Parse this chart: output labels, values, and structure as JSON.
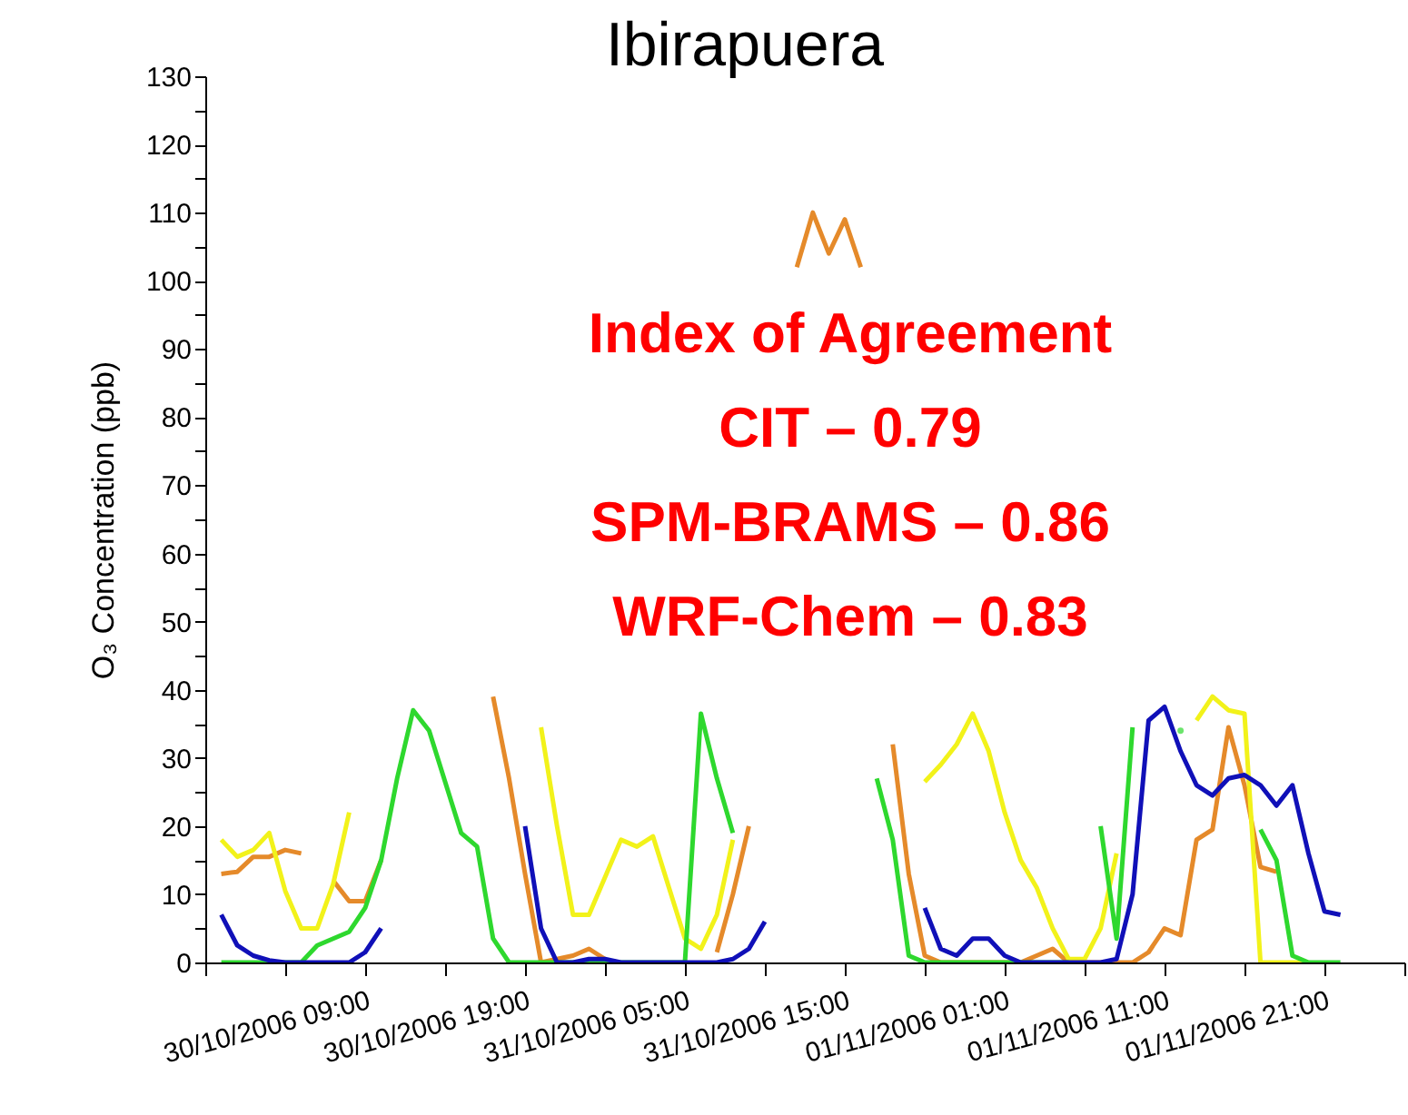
{
  "chart_data": {
    "type": "line",
    "title": "Ibirapuera",
    "ylabel": "O₃ Concentration (ppb)",
    "annotations": [
      "Index of Agreement",
      "CIT – 0.79",
      "SPM-BRAMS – 0.86",
      "WRF-Chem – 0.83"
    ],
    "x": [
      "2006-10-30T00:00",
      "2006-10-30T01:00",
      "2006-10-30T02:00",
      "2006-10-30T03:00",
      "2006-10-30T04:00",
      "2006-10-30T05:00",
      "2006-10-30T06:00",
      "2006-10-30T07:00",
      "2006-10-30T08:00",
      "2006-10-30T09:00",
      "2006-10-30T10:00",
      "2006-10-30T11:00",
      "2006-10-30T12:00",
      "2006-10-30T13:00",
      "2006-10-30T14:00",
      "2006-10-30T15:00",
      "2006-10-30T16:00",
      "2006-10-30T17:00",
      "2006-10-30T18:00",
      "2006-10-30T19:00",
      "2006-10-30T20:00",
      "2006-10-30T21:00",
      "2006-10-30T22:00",
      "2006-10-30T23:00",
      "2006-10-31T00:00",
      "2006-10-31T01:00",
      "2006-10-31T02:00",
      "2006-10-31T03:00",
      "2006-10-31T04:00",
      "2006-10-31T05:00",
      "2006-10-31T06:00",
      "2006-10-31T07:00",
      "2006-10-31T08:00",
      "2006-10-31T09:00",
      "2006-10-31T10:00",
      "2006-10-31T11:00",
      "2006-10-31T12:00",
      "2006-10-31T13:00",
      "2006-10-31T14:00",
      "2006-10-31T15:00",
      "2006-10-31T16:00",
      "2006-10-31T17:00",
      "2006-10-31T18:00",
      "2006-10-31T19:00",
      "2006-10-31T20:00",
      "2006-10-31T21:00",
      "2006-10-31T22:00",
      "2006-10-31T23:00",
      "2006-11-01T00:00",
      "2006-11-01T01:00",
      "2006-11-01T02:00",
      "2006-11-01T03:00",
      "2006-11-01T04:00",
      "2006-11-01T05:00",
      "2006-11-01T06:00",
      "2006-11-01T07:00",
      "2006-11-01T08:00",
      "2006-11-01T09:00",
      "2006-11-01T10:00",
      "2006-11-01T11:00",
      "2006-11-01T12:00",
      "2006-11-01T13:00",
      "2006-11-01T14:00",
      "2006-11-01T15:00",
      "2006-11-01T16:00",
      "2006-11-01T17:00",
      "2006-11-01T18:00",
      "2006-11-01T19:00",
      "2006-11-01T20:00",
      "2006-11-01T21:00",
      "2006-11-01T22:00"
    ],
    "series": [
      {
        "color": "#e58a2a",
        "values": [
          13,
          13.3,
          15.5,
          15.5,
          16.5,
          16,
          null,
          12,
          9,
          9,
          15,
          null,
          null,
          null,
          null,
          null,
          null,
          39,
          27,
          13,
          0,
          0.5,
          1,
          2,
          0.5,
          null,
          null,
          null,
          null,
          null,
          null,
          1.5,
          10,
          20,
          null,
          null,
          102,
          110,
          104,
          109,
          102,
          null,
          32,
          13,
          1,
          0,
          0,
          0,
          0,
          0,
          0,
          1,
          2,
          0,
          0,
          0,
          0,
          0,
          1.5,
          5,
          4,
          18,
          19.5,
          34.5,
          26,
          14,
          13.3,
          null,
          null,
          null,
          null
        ]
      },
      {
        "color": "#f2f21a",
        "values": [
          18,
          15.5,
          16.5,
          19,
          10.5,
          5,
          5,
          11.5,
          22,
          null,
          null,
          null,
          null,
          null,
          null,
          null,
          null,
          null,
          null,
          null,
          34.5,
          20,
          7,
          7,
          12.5,
          18,
          17,
          18.5,
          11,
          3.5,
          2,
          7,
          18,
          null,
          null,
          null,
          null,
          null,
          null,
          null,
          null,
          null,
          null,
          null,
          26.5,
          29,
          32,
          36.5,
          31,
          22,
          15,
          11,
          5,
          0.5,
          0.5,
          5,
          16,
          null,
          null,
          null,
          null,
          35.5,
          39,
          37,
          36.5,
          0,
          0,
          0,
          0,
          null,
          null
        ]
      },
      {
        "color": "#2ed82e",
        "values": [
          0,
          0,
          0,
          0,
          0,
          0,
          2.5,
          3.5,
          4.5,
          8,
          15,
          27,
          37,
          34,
          26.5,
          19,
          17,
          3.5,
          0,
          0,
          0,
          0,
          0,
          0,
          0,
          0,
          0,
          0,
          0,
          0,
          36.5,
          27,
          19,
          null,
          null,
          null,
          null,
          null,
          null,
          null,
          null,
          27,
          18,
          1,
          0,
          0,
          0,
          0,
          0,
          0,
          0,
          0,
          0,
          0,
          null,
          20,
          3.5,
          34.5,
          null,
          null,
          34,
          null,
          null,
          null,
          null,
          19.5,
          15,
          1,
          0,
          0,
          0
        ]
      },
      {
        "color": "#1010b8",
        "values": [
          7,
          2.5,
          1,
          0.3,
          0,
          0,
          0,
          0,
          0,
          1.5,
          5,
          null,
          null,
          null,
          null,
          null,
          null,
          null,
          null,
          20,
          5,
          0,
          0,
          0.5,
          0.5,
          0,
          0,
          0,
          0,
          0,
          0,
          0,
          0.5,
          2,
          6,
          null,
          null,
          null,
          null,
          null,
          null,
          null,
          null,
          null,
          8,
          2,
          1,
          3.5,
          3.5,
          1,
          0,
          0,
          0,
          0,
          0,
          0,
          0.5,
          10,
          35.5,
          37.5,
          31,
          26,
          24.5,
          27,
          27.5,
          26,
          23,
          26,
          16,
          7.5,
          7
        ]
      }
    ],
    "xlim": [
      "2006-10-29T23:00",
      "2006-11-02T02:00"
    ],
    "xticks": [
      {
        "value": "2006-10-29T23:00",
        "label": null
      },
      {
        "value": "2006-10-30T04:00",
        "label": null
      },
      {
        "value": "2006-10-30T09:00",
        "label": "30/10/2006 09:00"
      },
      {
        "value": "2006-10-30T14:00",
        "label": null
      },
      {
        "value": "2006-10-30T19:00",
        "label": "30/10/2006 19:00"
      },
      {
        "value": "2006-10-31T00:00",
        "label": null
      },
      {
        "value": "2006-10-31T05:00",
        "label": "31/10/2006 05:00"
      },
      {
        "value": "2006-10-31T10:00",
        "label": null
      },
      {
        "value": "2006-10-31T15:00",
        "label": "31/10/2006 15:00"
      },
      {
        "value": "2006-10-31T20:00",
        "label": null
      },
      {
        "value": "2006-11-01T01:00",
        "label": "01/11/2006 01:00"
      },
      {
        "value": "2006-11-01T06:00",
        "label": null
      },
      {
        "value": "2006-11-01T11:00",
        "label": "01/11/2006 11:00"
      },
      {
        "value": "2006-11-01T16:00",
        "label": null
      },
      {
        "value": "2006-11-01T21:00",
        "label": "01/11/2006 21:00"
      },
      {
        "value": "2006-11-02T02:00",
        "label": null
      }
    ],
    "ylim": [
      0,
      130
    ],
    "yticks": [
      0,
      {
        "value": 5,
        "label": null
      },
      10,
      {
        "value": 15,
        "label": null
      },
      20,
      {
        "value": 25,
        "label": null
      },
      30,
      {
        "value": 35,
        "label": null
      },
      40,
      {
        "value": 45,
        "label": null
      },
      50,
      {
        "value": 55,
        "label": null
      },
      60,
      {
        "value": 65,
        "label": null
      },
      70,
      {
        "value": 75,
        "label": null
      },
      80,
      {
        "value": 85,
        "label": null
      },
      90,
      {
        "value": 95,
        "label": null
      },
      100,
      {
        "value": 105,
        "label": null
      },
      110,
      {
        "value": 115,
        "label": null
      },
      120,
      {
        "value": 125,
        "label": null
      },
      130
    ]
  }
}
